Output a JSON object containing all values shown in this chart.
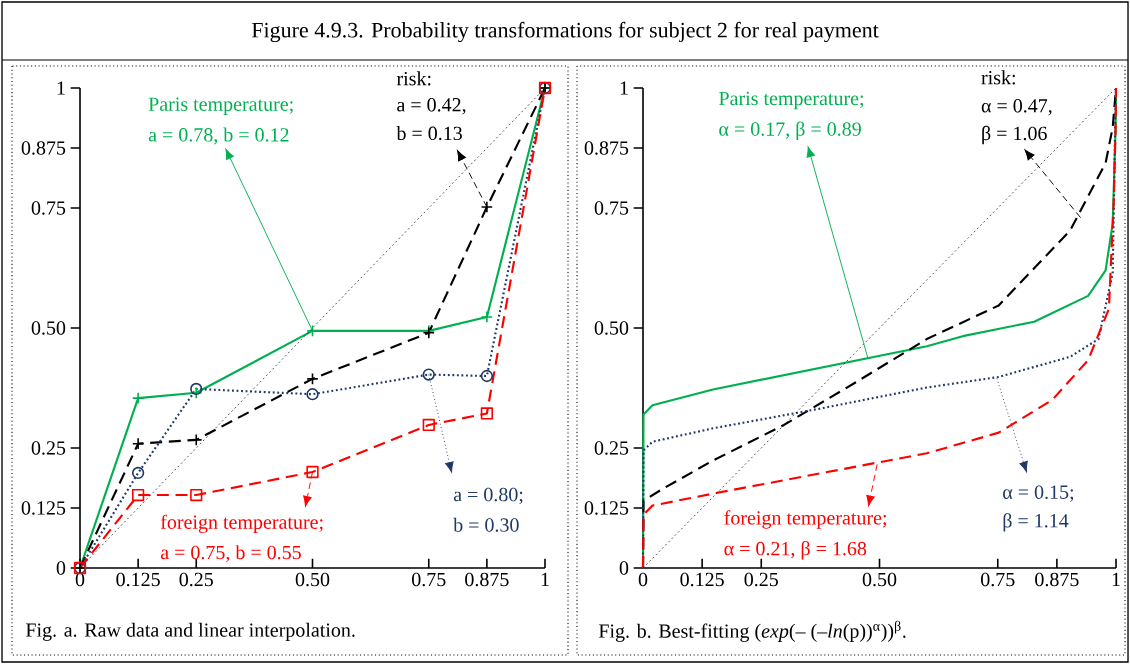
{
  "chart_data": [
    {
      "type": "line",
      "title": "Figure 4.9.3.  Probability transformations for subject 2 for real payment",
      "xlim": [
        0,
        1
      ],
      "ylim": [
        0,
        1
      ],
      "xticks": [
        0,
        0.125,
        0.25,
        {
          "value": 0.5,
          "label": "0.50"
        },
        0.75,
        0.875,
        1
      ],
      "yticks": [
        0,
        0.125,
        0.25,
        {
          "value": 0.5,
          "label": "0.50"
        },
        0.75,
        0.875,
        1
      ],
      "x": [
        0,
        0.125,
        0.25,
        0.5,
        0.75,
        0.875,
        1
      ],
      "series": [
        {
          "color": "#00b050",
          "line_style": "solid",
          "marker": "cross",
          "values": [
            0,
            0.354,
            0.365,
            0.494,
            0.494,
            0.523,
            1
          ]
        },
        {
          "color": "#000000",
          "line_style": "dashed",
          "marker": "cross",
          "values": [
            0,
            0.259,
            0.267,
            0.394,
            0.49,
            0.752,
            1
          ]
        },
        {
          "color": "#1f3864",
          "line_style": "dotted",
          "marker": "circle",
          "values": [
            0,
            0.198,
            0.373,
            0.362,
            0.403,
            0.4,
            1
          ]
        },
        {
          "color": "#ff0000",
          "line_style": "dashed",
          "marker": "square",
          "values": [
            0,
            0.152,
            0.152,
            0.2,
            0.298,
            0.322,
            1
          ]
        },
        {
          "color": "#000000",
          "line_style": "dotted",
          "x": [
            0,
            1
          ],
          "values": [
            0,
            1
          ]
        }
      ],
      "annotations": [
        "Paris temperature;",
        {
          "text": "a = 0.78, b = 0.12",
          "x": 0.5,
          "y": 0.494
        },
        "risk:",
        "a = 0.42,",
        {
          "text": "b = 0.13",
          "x": 0.875,
          "y": 0.752
        },
        {
          "text": "foreign temperature;",
          "x": 0.5,
          "y": 0.2
        },
        "a = 0.75, b = 0.55",
        {
          "text": "a = 0.80;",
          "x": 0.75,
          "y": 0.403
        },
        "b = 0.30",
        "Fig. a. Raw data and linear interpolation."
      ]
    },
    {
      "type": "line",
      "xlim": [
        0,
        1
      ],
      "ylim": [
        0,
        1
      ],
      "xticks": [
        0,
        0.125,
        0.25,
        {
          "value": 0.5,
          "label": "0.50"
        },
        0.75,
        0.875,
        1
      ],
      "yticks": [
        0,
        0.125,
        0.25,
        {
          "value": 0.5,
          "label": "0.50"
        },
        0.75,
        0.875,
        1
      ],
      "series": [
        {
          "color": "#00b050",
          "line_style": "solid",
          "x": [
            0,
            0.001,
            0.02,
            0.148,
            0.374,
            0.6,
            0.676,
            0.827,
            0.941,
            0.978,
            0.993,
            0.999,
            1
          ],
          "values": [
            0,
            0.32,
            0.339,
            0.372,
            0.417,
            0.462,
            0.483,
            0.513,
            0.567,
            0.62,
            0.718,
            0.912,
            1
          ]
        },
        {
          "color": "#000000",
          "line_style": "dashed",
          "x": [
            0,
            0.001,
            0.04,
            0.148,
            0.298,
            0.45,
            0.6,
            0.752,
            0.903,
            0.978,
            0.993,
            1
          ],
          "values": [
            0,
            0.14,
            0.164,
            0.224,
            0.298,
            0.387,
            0.477,
            0.547,
            0.703,
            0.844,
            0.918,
            1
          ]
        },
        {
          "color": "#1f3864",
          "line_style": "dotted",
          "x": [
            0,
            0.001,
            0.02,
            0.148,
            0.374,
            0.6,
            0.752,
            0.903,
            0.963,
            0.993,
            0.998,
            1
          ],
          "values": [
            0,
            0.245,
            0.263,
            0.291,
            0.332,
            0.376,
            0.398,
            0.44,
            0.477,
            0.615,
            0.91,
            1
          ]
        },
        {
          "color": "#ff0000",
          "line_style": "dashed",
          "x": [
            0,
            0.001,
            0.02,
            0.148,
            0.374,
            0.6,
            0.752,
            0.865,
            0.941,
            0.985,
            0.995,
            0.999,
            1
          ],
          "values": [
            0,
            0.111,
            0.13,
            0.155,
            0.197,
            0.239,
            0.282,
            0.35,
            0.433,
            0.54,
            0.76,
            0.91,
            1
          ]
        },
        {
          "color": "#000000",
          "line_style": "dotted",
          "x": [
            0,
            1
          ],
          "values": [
            0,
            1
          ]
        }
      ],
      "annotations": [
        "Paris temperature;",
        {
          "text": "α = 0.17, β = 0.89",
          "x": 0.476,
          "y": 0.435
        },
        "risk:",
        "α = 0.47,",
        {
          "text": "β = 1.06",
          "x": 0.925,
          "y": 0.73
        },
        {
          "text": "foreign temperature;",
          "x": 0.495,
          "y": 0.216
        },
        "α = 0.21, β = 1.68",
        {
          "text": "α = 0.15;",
          "x": 0.748,
          "y": 0.395
        },
        "β = 1.14",
        "Fig. b. Best-fitting (*exp*(– (–*ln*(p))$^{α}$))$^{β}$."
      ]
    }
  ]
}
